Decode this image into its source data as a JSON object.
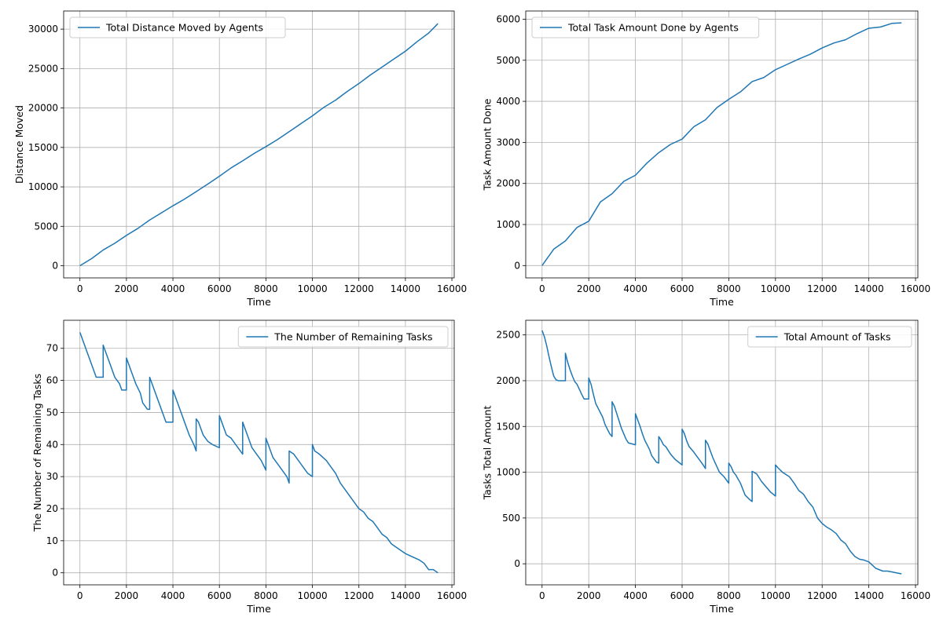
{
  "style": {
    "line_color": "#1f77b4",
    "grid_color": "#b0b0b0"
  },
  "chart_data": [
    {
      "type": "line",
      "xlabel": "Time",
      "ylabel": "Distance Moved",
      "legend_position": "upper-left",
      "grid": true,
      "xlim": [
        -700,
        16100
      ],
      "ylim": [
        -1540,
        32300
      ],
      "xticks": [
        0,
        2000,
        4000,
        6000,
        8000,
        10000,
        12000,
        14000,
        16000
      ],
      "yticks": [
        0,
        5000,
        10000,
        15000,
        20000,
        25000,
        30000
      ],
      "series": [
        {
          "name": "Total Distance Moved by Agents",
          "x": [
            0,
            500,
            1000,
            1500,
            2000,
            2500,
            3000,
            3500,
            4000,
            4500,
            5000,
            5500,
            6000,
            6500,
            7000,
            7500,
            8000,
            8500,
            9000,
            9500,
            10000,
            10500,
            11000,
            11500,
            12000,
            12500,
            13000,
            13500,
            14000,
            14500,
            15000,
            15400
          ],
          "y": [
            0,
            900,
            2000,
            2850,
            3850,
            4750,
            5800,
            6700,
            7600,
            8450,
            9400,
            10350,
            11350,
            12400,
            13300,
            14250,
            15100,
            16000,
            17000,
            18000,
            19000,
            20100,
            21000,
            22100,
            23100,
            24200,
            25200,
            26200,
            27200,
            28400,
            29500,
            30700
          ]
        }
      ]
    },
    {
      "type": "line",
      "xlabel": "Time",
      "ylabel": "Task Amount Done",
      "legend_position": "upper-left",
      "grid": true,
      "xlim": [
        -700,
        16100
      ],
      "ylim": [
        -300,
        6200
      ],
      "xticks": [
        0,
        2000,
        4000,
        6000,
        8000,
        10000,
        12000,
        14000,
        16000
      ],
      "yticks": [
        0,
        1000,
        2000,
        3000,
        4000,
        5000,
        6000
      ],
      "series": [
        {
          "name": "Total Task Amount Done by Agents",
          "x": [
            0,
            500,
            1000,
            1500,
            2000,
            2500,
            3000,
            3500,
            4000,
            4500,
            5000,
            5500,
            6000,
            6500,
            7000,
            7500,
            8000,
            8500,
            9000,
            9500,
            10000,
            10500,
            11000,
            11500,
            12000,
            12500,
            13000,
            13500,
            14000,
            14500,
            15000,
            15400
          ],
          "y": [
            0,
            400,
            600,
            930,
            1080,
            1550,
            1750,
            2050,
            2200,
            2500,
            2750,
            2950,
            3080,
            3380,
            3550,
            3850,
            4050,
            4230,
            4480,
            4580,
            4770,
            4900,
            5030,
            5150,
            5300,
            5420,
            5500,
            5650,
            5780,
            5810,
            5900,
            5910
          ]
        }
      ]
    },
    {
      "type": "line",
      "xlabel": "Time",
      "ylabel": "The Number of Remaining Tasks",
      "legend_position": "upper-right",
      "grid": true,
      "xlim": [
        -700,
        16100
      ],
      "ylim": [
        -3.75,
        78.75
      ],
      "xticks": [
        0,
        2000,
        4000,
        6000,
        8000,
        10000,
        12000,
        14000,
        16000
      ],
      "yticks": [
        0,
        10,
        20,
        30,
        40,
        50,
        60,
        70
      ],
      "series": [
        {
          "name": "The Number of Remaining Tasks",
          "x": [
            0,
            100,
            200,
            300,
            400,
            500,
            600,
            700,
            1000,
            1000,
            1100,
            1200,
            1300,
            1400,
            1500,
            1700,
            1800,
            2000,
            2000,
            2100,
            2200,
            2300,
            2400,
            2600,
            2700,
            2900,
            3000,
            3000,
            3100,
            3200,
            3300,
            3400,
            3500,
            3600,
            3700,
            4000,
            4000,
            4100,
            4200,
            4300,
            4400,
            4500,
            4600,
            4700,
            4900,
            5000,
            5000,
            5100,
            5200,
            5300,
            5500,
            5700,
            6000,
            6000,
            6100,
            6200,
            6300,
            6500,
            6700,
            6900,
            7000,
            7000,
            7100,
            7200,
            7300,
            7400,
            7600,
            7800,
            8000,
            8000,
            8100,
            8200,
            8300,
            8500,
            8700,
            8900,
            9000,
            9000,
            9200,
            9400,
            9600,
            9800,
            10000,
            10000,
            10100,
            10300,
            10600,
            10800,
            11000,
            11200,
            11400,
            11600,
            11800,
            12000,
            12200,
            12400,
            12600,
            12800,
            13000,
            13200,
            13400,
            13600,
            13800,
            14000,
            14300,
            14600,
            14800,
            15000,
            15200,
            15400
          ],
          "y": [
            75,
            73,
            71,
            69,
            67,
            65,
            63,
            61,
            61,
            71,
            69,
            67,
            65,
            63,
            61,
            59,
            57,
            57,
            67,
            65,
            63,
            61,
            59,
            56,
            53,
            51,
            51,
            61,
            59,
            57,
            55,
            53,
            51,
            49,
            47,
            47,
            57,
            55,
            53,
            51,
            49,
            47,
            45,
            43,
            40,
            38,
            48,
            47,
            45,
            43,
            41,
            40,
            39,
            49,
            47,
            45,
            43,
            42,
            40,
            38,
            37,
            47,
            45,
            43,
            41,
            39,
            37,
            35,
            32,
            42,
            40,
            38,
            36,
            34,
            32,
            30,
            28,
            38,
            37,
            35,
            33,
            31,
            30,
            40,
            38,
            37,
            35,
            33,
            31,
            28,
            26,
            24,
            22,
            20,
            19,
            17,
            16,
            14,
            12,
            11,
            9,
            8,
            7,
            6,
            5,
            4,
            3,
            1,
            1,
            0
          ]
        }
      ]
    },
    {
      "type": "line",
      "xlabel": "Time",
      "ylabel": "Tasks Total Amount",
      "legend_position": "upper-right",
      "grid": true,
      "xlim": [
        -700,
        16100
      ],
      "ylim": [
        -230,
        2660
      ],
      "xticks": [
        0,
        2000,
        4000,
        6000,
        8000,
        10000,
        12000,
        14000,
        16000
      ],
      "yticks": [
        0,
        500,
        1000,
        1500,
        2000,
        2500
      ],
      "series": [
        {
          "name": "Total Amount of Tasks",
          "x": [
            0,
            100,
            200,
            300,
            400,
            500,
            600,
            700,
            1000,
            1000,
            1100,
            1200,
            1300,
            1400,
            1500,
            1700,
            1800,
            2000,
            2000,
            2100,
            2200,
            2300,
            2400,
            2600,
            2700,
            2900,
            3000,
            3000,
            3100,
            3200,
            3300,
            3400,
            3500,
            3600,
            3700,
            4000,
            4000,
            4100,
            4200,
            4300,
            4400,
            4500,
            4600,
            4700,
            4900,
            5000,
            5000,
            5100,
            5200,
            5300,
            5500,
            5700,
            6000,
            6000,
            6100,
            6200,
            6300,
            6500,
            6700,
            6900,
            7000,
            7000,
            7100,
            7200,
            7300,
            7400,
            7600,
            7800,
            8000,
            8000,
            8100,
            8200,
            8300,
            8500,
            8700,
            8900,
            9000,
            9000,
            9200,
            9400,
            9600,
            9800,
            10000,
            10000,
            10100,
            10300,
            10600,
            10800,
            11000,
            11200,
            11400,
            11600,
            11800,
            12000,
            12200,
            12400,
            12600,
            12800,
            13000,
            13200,
            13400,
            13600,
            13800,
            14000,
            14300,
            14600,
            14800,
            15000,
            15200,
            15400
          ],
          "y": [
            2550,
            2480,
            2380,
            2260,
            2150,
            2050,
            2010,
            2000,
            2000,
            2300,
            2200,
            2120,
            2050,
            1990,
            1960,
            1850,
            1800,
            1800,
            2030,
            1960,
            1850,
            1750,
            1700,
            1600,
            1520,
            1420,
            1390,
            1770,
            1720,
            1640,
            1560,
            1480,
            1420,
            1360,
            1320,
            1300,
            1640,
            1570,
            1500,
            1420,
            1350,
            1300,
            1250,
            1180,
            1110,
            1100,
            1390,
            1350,
            1300,
            1280,
            1200,
            1140,
            1080,
            1470,
            1420,
            1340,
            1280,
            1220,
            1150,
            1080,
            1040,
            1350,
            1310,
            1240,
            1170,
            1110,
            1000,
            950,
            880,
            1100,
            1060,
            1000,
            970,
            880,
            750,
            700,
            680,
            1010,
            980,
            900,
            840,
            780,
            740,
            1080,
            1050,
            1000,
            950,
            880,
            800,
            760,
            680,
            620,
            500,
            440,
            400,
            370,
            330,
            260,
            220,
            140,
            80,
            50,
            40,
            20,
            -50,
            -80,
            -80,
            -90,
            -100,
            -110
          ]
        }
      ]
    }
  ]
}
